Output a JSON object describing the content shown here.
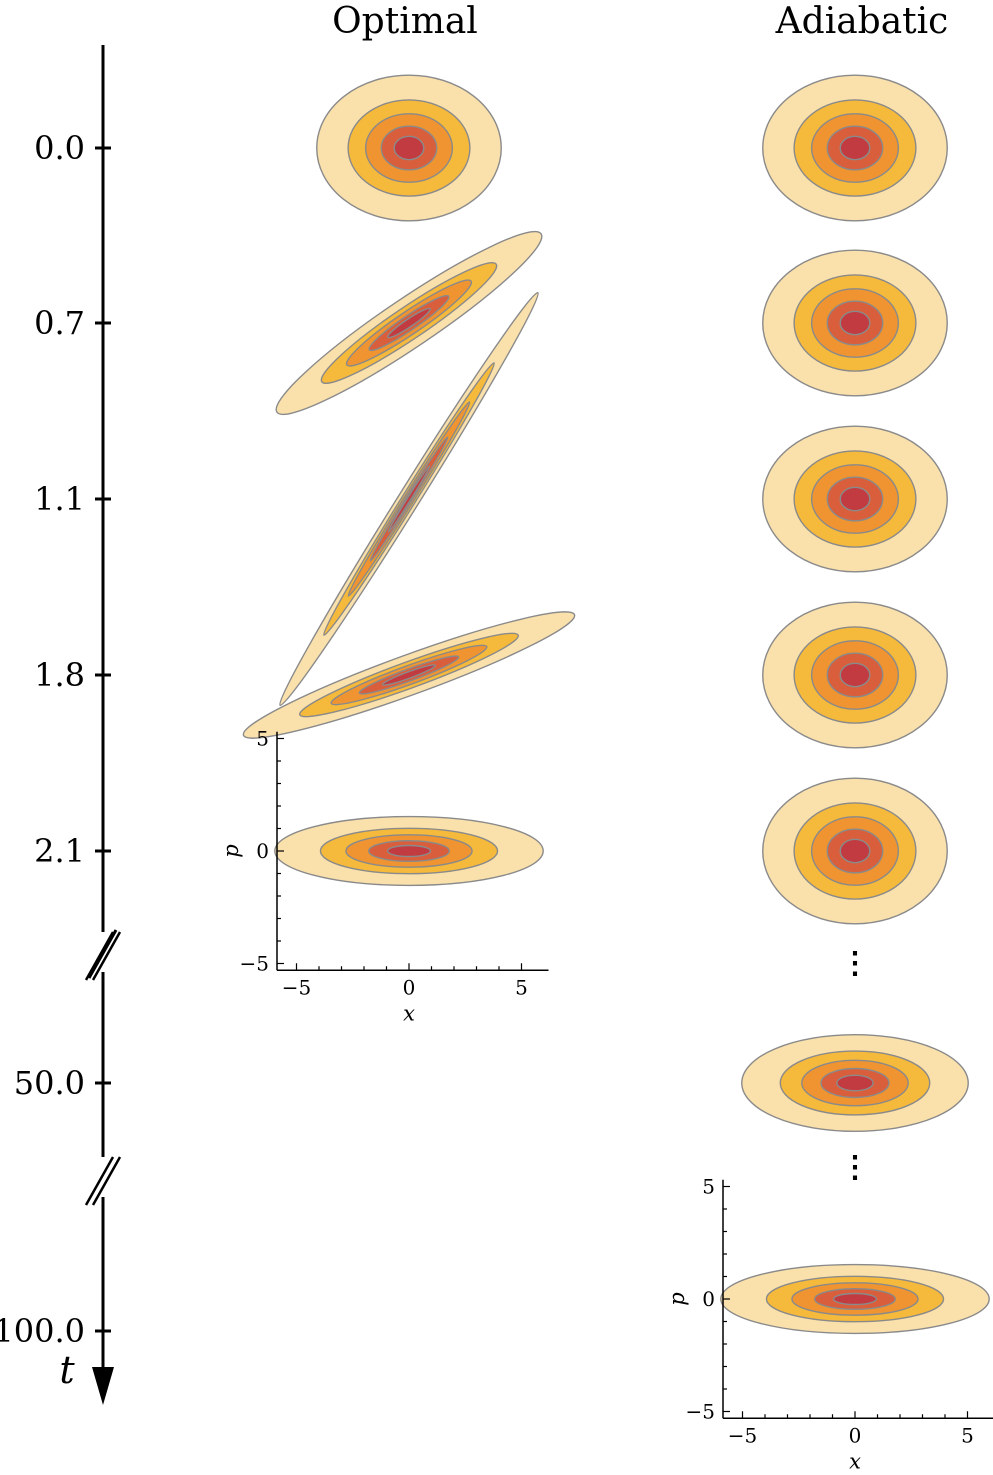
{
  "columns": [
    "Optimal",
    "Adiabatic"
  ],
  "time_axis": {
    "label": "t",
    "ticks": [
      "0.0",
      "0.7",
      "1.1",
      "1.8",
      "2.1",
      "50.0",
      "100.0"
    ],
    "broken_after": [
      "2.1",
      "50.0"
    ]
  },
  "inset_axes": {
    "xlabel": "x",
    "ylabel": "p",
    "xticks": [
      "−5",
      "0",
      "5"
    ],
    "yticks": [
      "5",
      "0",
      "−5"
    ]
  },
  "ellipsis": "⋮",
  "contour_colors": [
    "#fae1ac",
    "#f5b93b",
    "#ef9430",
    "#d95f3c",
    "#c23b40"
  ],
  "contour_edge_color": "#8a8a8a",
  "optimal": [
    {
      "t": "0.0",
      "squeeze": 1.1,
      "angle_deg": 0
    },
    {
      "t": "0.7",
      "squeeze": 1.9,
      "angle_deg": 34
    },
    {
      "t": "1.1",
      "squeeze": 2.9,
      "angle_deg": 58
    },
    {
      "t": "1.8",
      "squeeze": 2.1,
      "angle_deg": 20
    },
    {
      "t": "2.1",
      "squeeze": 1.6,
      "angle_deg": 0
    }
  ],
  "adiabatic": [
    {
      "t": "0.0",
      "squeeze": 1.1,
      "angle_deg": 0
    },
    {
      "t": "0.7",
      "squeeze": 1.1,
      "angle_deg": 0
    },
    {
      "t": "1.1",
      "squeeze": 1.1,
      "angle_deg": 0
    },
    {
      "t": "1.8",
      "squeeze": 1.1,
      "angle_deg": 0
    },
    {
      "t": "2.1",
      "squeeze": 1.1,
      "angle_deg": 0
    },
    {
      "t": "50.0",
      "squeeze": 1.35,
      "angle_deg": 0
    },
    {
      "t": "100.0",
      "squeeze": 1.6,
      "angle_deg": 0
    }
  ]
}
